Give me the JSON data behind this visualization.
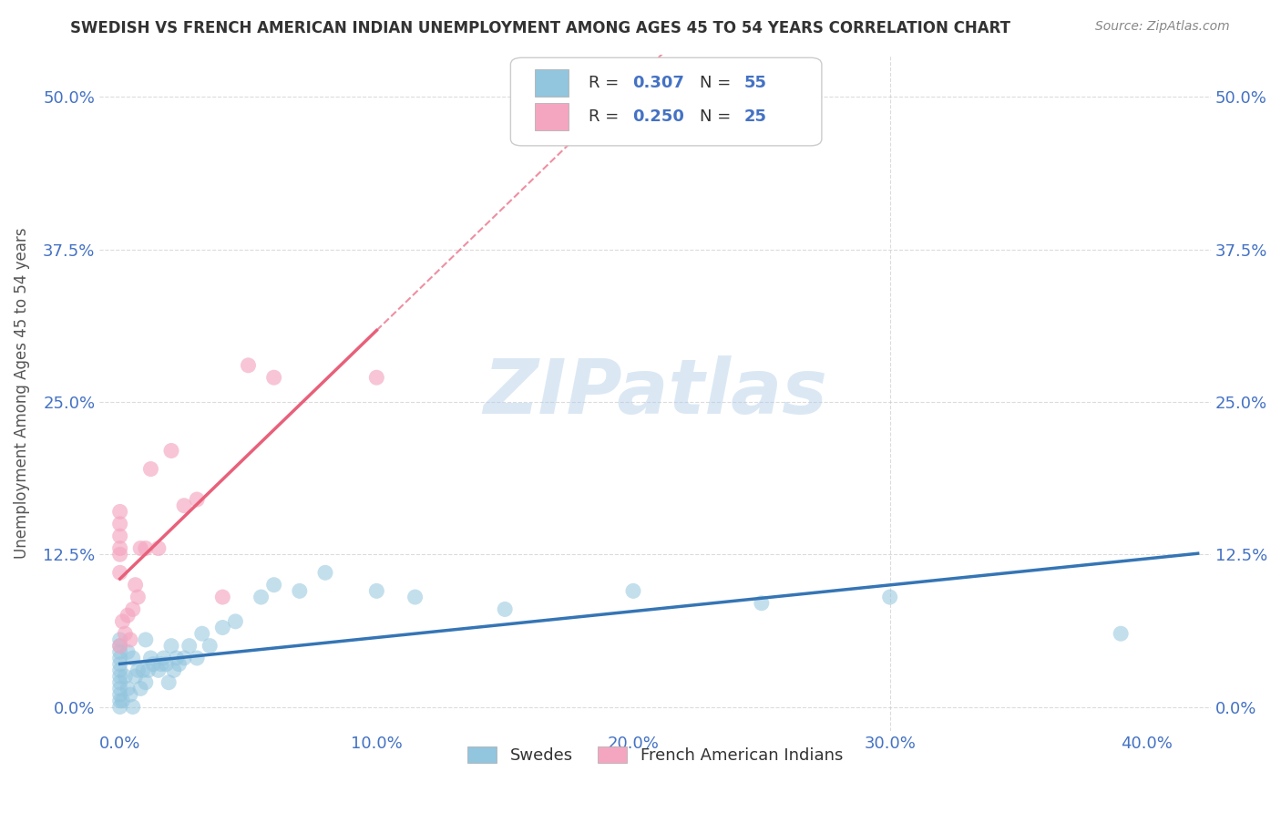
{
  "title": "SWEDISH VS FRENCH AMERICAN INDIAN UNEMPLOYMENT AMONG AGES 45 TO 54 YEARS CORRELATION CHART",
  "source": "Source: ZipAtlas.com",
  "ylabel": "Unemployment Among Ages 45 to 54 years",
  "xlim": [
    -0.008,
    0.425
  ],
  "ylim": [
    -0.02,
    0.535
  ],
  "swedish_R": 0.307,
  "swedish_N": 55,
  "french_R": 0.25,
  "french_N": 25,
  "swedish_color": "#92c5de",
  "french_color": "#f4a6c0",
  "swedish_line_color": "#3575b5",
  "french_line_color": "#e8607a",
  "watermark": "ZIPatlas",
  "background_color": "#ffffff",
  "grid_color": "#cccccc",
  "swedish_x": [
    0.0,
    0.0,
    0.0,
    0.0,
    0.0,
    0.0,
    0.0,
    0.0,
    0.0,
    0.0,
    0.0,
    0.0,
    0.0,
    0.002,
    0.002,
    0.003,
    0.003,
    0.004,
    0.004,
    0.005,
    0.005,
    0.006,
    0.007,
    0.008,
    0.009,
    0.01,
    0.01,
    0.011,
    0.012,
    0.013,
    0.014,
    0.015,
    0.016,
    0.017,
    0.018,
    0.019,
    0.02,
    0.022,
    0.025,
    0.027,
    0.03,
    0.033,
    0.035,
    0.04,
    0.045,
    0.05,
    0.055,
    0.06,
    0.07,
    0.08,
    0.11,
    0.15,
    0.2,
    0.3,
    0.39
  ],
  "swedish_y": [
    0.0,
    0.0,
    0.0,
    0.01,
    0.01,
    0.02,
    0.02,
    0.03,
    0.03,
    0.04,
    0.04,
    0.05,
    0.055,
    0.0,
    0.03,
    0.02,
    0.04,
    0.01,
    0.035,
    0.02,
    0.04,
    0.03,
    0.025,
    0.03,
    0.035,
    0.02,
    0.04,
    0.035,
    0.03,
    0.04,
    0.025,
    0.035,
    0.03,
    0.04,
    0.035,
    0.03,
    0.045,
    0.035,
    0.04,
    0.04,
    0.055,
    0.04,
    0.05,
    0.05,
    0.06,
    0.08,
    0.09,
    0.1,
    0.09,
    0.1,
    0.09,
    0.07,
    0.085,
    0.085,
    0.06
  ],
  "french_x": [
    0.0,
    0.0,
    0.0,
    0.0,
    0.0,
    0.0,
    0.0,
    0.0,
    0.0,
    0.001,
    0.002,
    0.003,
    0.004,
    0.005,
    0.006,
    0.007,
    0.008,
    0.01,
    0.012,
    0.015,
    0.02,
    0.025,
    0.03,
    0.035,
    0.1
  ],
  "french_y": [
    0.11,
    0.12,
    0.125,
    0.13,
    0.135,
    0.14,
    0.05,
    0.065,
    0.08,
    0.09,
    0.08,
    0.07,
    0.06,
    0.08,
    0.1,
    0.09,
    0.13,
    0.13,
    0.15,
    0.13,
    0.2,
    0.15,
    0.16,
    0.17,
    0.27
  ]
}
